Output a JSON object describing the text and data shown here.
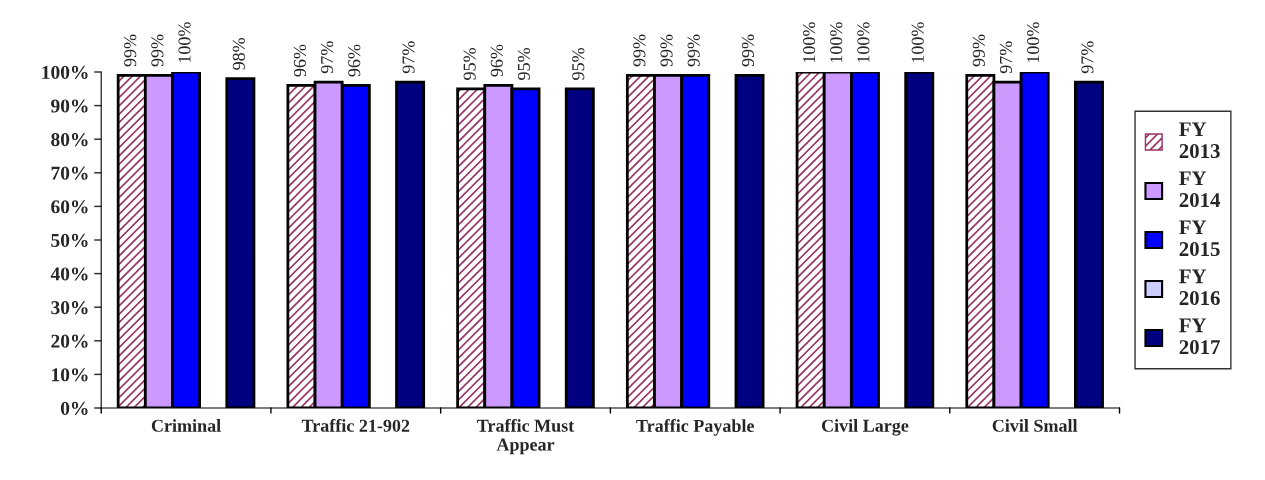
{
  "chart_data": {
    "type": "bar",
    "categories": [
      "Criminal",
      "Traffic 21-902",
      "Traffic Must\nAppear",
      "Traffic Payable",
      "Civil Large",
      "Civil Small"
    ],
    "series": [
      {
        "name": "FY\n2013",
        "color": "#993366",
        "values": [
          99,
          96,
          95,
          99,
          100,
          99
        ],
        "value_labels": [
          "99%",
          "96%",
          "95%",
          "99%",
          "100%",
          "99%"
        ]
      },
      {
        "name": "FY\n2014",
        "color": "#cc99ff",
        "values": [
          99,
          97,
          96,
          99,
          100,
          97
        ],
        "value_labels": [
          "99%",
          "97%",
          "96%",
          "99%",
          "100%",
          "97%"
        ]
      },
      {
        "name": "FY\n2015",
        "color": "#0000ff",
        "values": [
          100,
          96,
          95,
          99,
          100,
          100
        ],
        "value_labels": [
          "100%",
          "96%",
          "95%",
          "99%",
          "100%",
          "100%"
        ]
      },
      {
        "name": "FY\n2016",
        "color": "#ccccff",
        "values": [
          null,
          null,
          null,
          null,
          null,
          null
        ]
      },
      {
        "name": "FY\n2017",
        "color": "#000080",
        "values": [
          98,
          97,
          95,
          99,
          100,
          97
        ],
        "value_labels": [
          "98%",
          "97%",
          "95%",
          "99%",
          "100%",
          "97%"
        ]
      }
    ],
    "ylim": [
      0,
      100
    ],
    "yticks": [
      {
        "value": 0,
        "label": "0%"
      },
      {
        "value": 10,
        "label": "10%"
      },
      {
        "value": 20,
        "label": "20%"
      },
      {
        "value": 30,
        "label": "30%"
      },
      {
        "value": 40,
        "label": "40%"
      },
      {
        "value": 50,
        "label": "50%"
      },
      {
        "value": 60,
        "label": "60%"
      },
      {
        "value": 70,
        "label": "70%"
      },
      {
        "value": 80,
        "label": "80%"
      },
      {
        "value": 90,
        "label": "90%"
      },
      {
        "value": 100,
        "label": "100%"
      }
    ],
    "legend": "right"
  }
}
